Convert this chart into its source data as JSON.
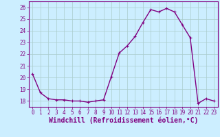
{
  "x": [
    0,
    1,
    2,
    3,
    4,
    5,
    6,
    7,
    8,
    9,
    10,
    11,
    12,
    13,
    14,
    15,
    16,
    17,
    18,
    19,
    20,
    21,
    22,
    23
  ],
  "y": [
    20.3,
    18.7,
    18.2,
    18.1,
    18.1,
    18.0,
    18.0,
    17.9,
    18.0,
    18.1,
    20.1,
    22.1,
    22.7,
    23.5,
    24.7,
    25.8,
    25.6,
    25.9,
    25.6,
    24.5,
    23.4,
    17.8,
    18.2,
    18.0
  ],
  "line_color": "#800080",
  "marker_color": "#800080",
  "bg_color": "#cceeff",
  "grid_color": "#aacccc",
  "xlabel": "Windchill (Refroidissement éolien,°C)",
  "xlim": [
    -0.5,
    23.5
  ],
  "ylim": [
    17.5,
    26.5
  ],
  "yticks": [
    18,
    19,
    20,
    21,
    22,
    23,
    24,
    25,
    26
  ],
  "xticks": [
    0,
    1,
    2,
    3,
    4,
    5,
    6,
    7,
    8,
    9,
    10,
    11,
    12,
    13,
    14,
    15,
    16,
    17,
    18,
    19,
    20,
    21,
    22,
    23
  ],
  "tick_label_fontsize": 5.5,
  "xlabel_fontsize": 7.0,
  "marker_size": 2.5,
  "line_width": 1.0
}
